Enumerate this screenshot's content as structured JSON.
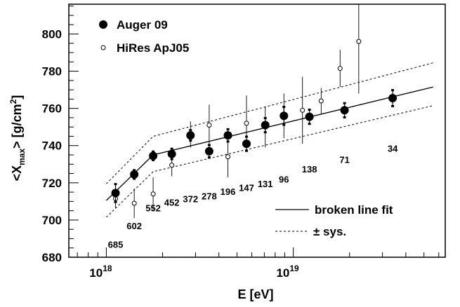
{
  "chart_data": {
    "type": "scatter",
    "xlabel": "E [eV]",
    "ylabel_main": "<X",
    "ylabel_sub": "max",
    "ylabel_tail": "> [g/cm",
    "ylabel_sup": "2",
    "ylabel_end": "]",
    "xscale": "log",
    "xlim": [
      6.3e+17,
      6.5e+19
    ],
    "ylim": [
      680,
      816
    ],
    "xticks": [
      {
        "value": 1e+18,
        "mant": "10",
        "exp": "18"
      },
      {
        "value": 1e+19,
        "mant": "10",
        "exp": "19"
      }
    ],
    "yticks": [
      "680",
      "700",
      "720",
      "740",
      "760",
      "780",
      "800"
    ],
    "legend": {
      "position": "top-left",
      "auger_label": "Auger 09",
      "hires_label": "HiRes ApJ05"
    },
    "legend2": {
      "position": "bottom-right",
      "fit_label": "broken line fit",
      "sys_label": "± sys."
    },
    "series": [
      {
        "name": "Auger 09",
        "marker": "filled-circle",
        "points": [
          {
            "x": 1.12e+18,
            "y": 714.5,
            "err": 5
          },
          {
            "x": 1.41e+18,
            "y": 724.5,
            "err": 2.5
          },
          {
            "x": 1.78e+18,
            "y": 734.5,
            "err": 2.5
          },
          {
            "x": 2.24e+18,
            "y": 735.5,
            "err": 3
          },
          {
            "x": 2.82e+18,
            "y": 745.5,
            "err": 3
          },
          {
            "x": 3.55e+18,
            "y": 737,
            "err": 3.5
          },
          {
            "x": 4.47e+18,
            "y": 745.5,
            "err": 3.5
          },
          {
            "x": 5.62e+18,
            "y": 741,
            "err": 4
          },
          {
            "x": 7.08e+18,
            "y": 751,
            "err": 4
          },
          {
            "x": 8.91e+18,
            "y": 756,
            "err": 5
          },
          {
            "x": 1.22e+19,
            "y": 755.5,
            "err": 4
          },
          {
            "x": 1.88e+19,
            "y": 759,
            "err": 4
          },
          {
            "x": 3.4e+19,
            "y": 765.5,
            "err": 4.5
          }
        ]
      },
      {
        "name": "HiRes ApJ05",
        "marker": "open-circle",
        "points": [
          {
            "x": 1.12e+18,
            "y": 711.5,
            "err": 5
          },
          {
            "x": 1.41e+18,
            "y": 709,
            "err": 8
          },
          {
            "x": 1.78e+18,
            "y": 714,
            "err": 9
          },
          {
            "x": 2.24e+18,
            "y": 729.5,
            "err": 6
          },
          {
            "x": 2.82e+18,
            "y": 746,
            "err": 7
          },
          {
            "x": 3.55e+18,
            "y": 751,
            "err": 11
          },
          {
            "x": 4.47e+18,
            "y": 734,
            "err": 11
          },
          {
            "x": 5.62e+18,
            "y": 752,
            "err": 15
          },
          {
            "x": 7.08e+18,
            "y": 750,
            "err": 11
          },
          {
            "x": 8.91e+18,
            "y": 756,
            "err": 12
          },
          {
            "x": 1.12e+19,
            "y": 759,
            "err": 18
          },
          {
            "x": 1.41e+19,
            "y": 764,
            "err": 7
          },
          {
            "x": 1.78e+19,
            "y": 781.5,
            "err": 10
          },
          {
            "x": 2.24e+19,
            "y": 796,
            "err": 28
          }
        ]
      }
    ],
    "fit": {
      "name": "broken line fit",
      "points": [
        {
          "x": 1e+18,
          "y": 710.5
        },
        {
          "x": 1.78e+18,
          "y": 735
        },
        {
          "x": 5.6e+19,
          "y": 771.5
        }
      ]
    },
    "sys_upper": {
      "points": [
        {
          "x": 1e+18,
          "y": 719.5
        },
        {
          "x": 1.78e+18,
          "y": 745
        },
        {
          "x": 5.6e+19,
          "y": 784.5
        }
      ]
    },
    "sys_lower": {
      "points": [
        {
          "x": 1e+18,
          "y": 701.5
        },
        {
          "x": 1.78e+18,
          "y": 726
        },
        {
          "x": 5.6e+19,
          "y": 761.5
        }
      ]
    },
    "event_counts": [
      {
        "text": "685",
        "x": 1.12e+18,
        "y": 687
      },
      {
        "text": "602",
        "x": 1.41e+18,
        "y": 697
      },
      {
        "text": "552",
        "x": 1.78e+18,
        "y": 706.5
      },
      {
        "text": "452",
        "x": 2.24e+18,
        "y": 709.5
      },
      {
        "text": "372",
        "x": 2.82e+18,
        "y": 711.5
      },
      {
        "text": "278",
        "x": 3.55e+18,
        "y": 713
      },
      {
        "text": "196",
        "x": 4.47e+18,
        "y": 715.5
      },
      {
        "text": "147",
        "x": 5.62e+18,
        "y": 717.5
      },
      {
        "text": "131",
        "x": 7.08e+18,
        "y": 719.5
      },
      {
        "text": "96",
        "x": 8.91e+18,
        "y": 722
      },
      {
        "text": "138",
        "x": 1.22e+19,
        "y": 727.5
      },
      {
        "text": "71",
        "x": 1.88e+19,
        "y": 732.5
      },
      {
        "text": "34",
        "x": 3.4e+19,
        "y": 738.5
      }
    ]
  }
}
